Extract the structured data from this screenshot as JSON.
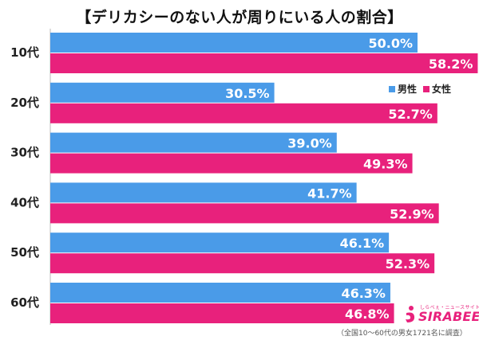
{
  "chart_data": {
    "type": "bar",
    "orientation": "horizontal",
    "title": "【デリカシーのない人が周りにいる人の割合】",
    "categories": [
      "10代",
      "20代",
      "30代",
      "40代",
      "50代",
      "60代"
    ],
    "series": [
      {
        "name": "男性",
        "color": "#4a9be8",
        "values": [
          50.0,
          30.5,
          39.0,
          41.7,
          46.1,
          46.3
        ]
      },
      {
        "name": "女性",
        "color": "#e8217c",
        "values": [
          58.2,
          52.7,
          49.3,
          52.9,
          52.3,
          46.8
        ]
      }
    ],
    "value_format": "%",
    "xlim": [
      0,
      70
    ],
    "grid": false,
    "legend_position": "right, below first group"
  },
  "logo": {
    "wordmark": "SIRABEE",
    "tagline": "しらべぇ・ニュースサイトしらべぇ"
  },
  "footnote": "（全国10〜60代の男女1721名に調査）"
}
